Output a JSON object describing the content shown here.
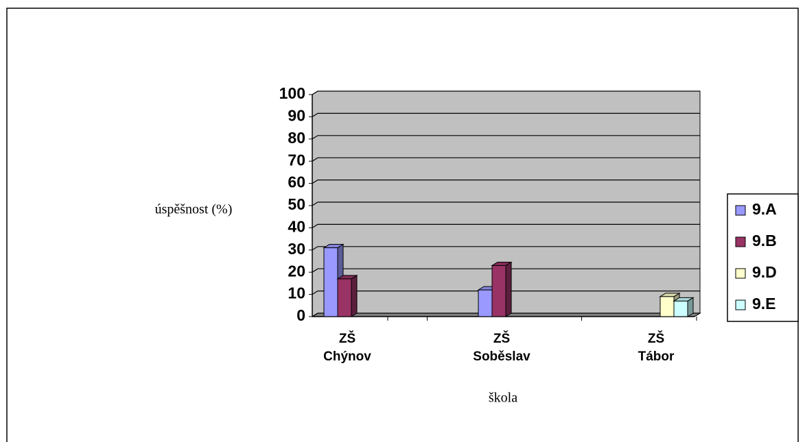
{
  "chart_data": {
    "type": "bar",
    "categories": [
      "ZŠ Chýnov",
      "ZŠ Soběslav",
      "ZŠ Tábor"
    ],
    "series": [
      {
        "name": "9.A",
        "color": "#9999ff",
        "values": [
          31,
          12,
          null
        ]
      },
      {
        "name": "9.B",
        "color": "#993366",
        "values": [
          17,
          23,
          null
        ]
      },
      {
        "name": "9.D",
        "color": "#ffffcc",
        "values": [
          null,
          null,
          9
        ]
      },
      {
        "name": "9.E",
        "color": "#ccffff",
        "values": [
          null,
          null,
          7
        ]
      }
    ],
    "x_label": "škola",
    "y_label": "úspěšnost (%)",
    "ylim": [
      0,
      100
    ],
    "yticks": [
      0,
      10,
      20,
      30,
      40,
      50,
      60,
      70,
      80,
      90,
      100
    ],
    "grid": true,
    "legend": "right"
  }
}
